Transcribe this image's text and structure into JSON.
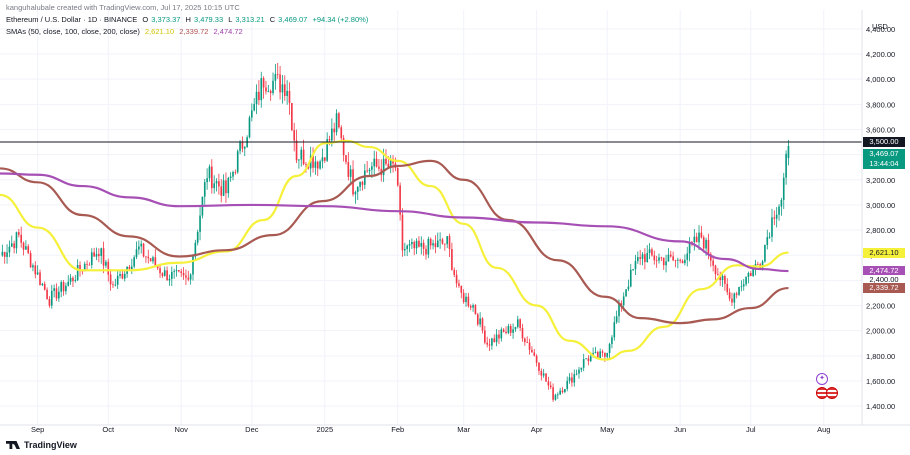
{
  "header": {
    "attribution": "kanguhalubale created with TradingView.com, Jul 17, 2025 10:15 UTC",
    "symbol": "Ethereum / U.S. Dollar · 1D · BINANCE",
    "o_label": "O",
    "o_value": "3,373.37",
    "h_label": "H",
    "h_value": "3,479.33",
    "l_label": "L",
    "l_value": "3,313.21",
    "c_label": "C",
    "c_value": "3,469.07",
    "change": "+94.34 (+2.80%)",
    "sma_label": "SMAs (50, close, 100, close, 200, close)",
    "sma50_value": "2,621.10",
    "sma100_value": "2,339.72",
    "sma200_value": "2,474.72"
  },
  "axis": {
    "unit": "USD"
  },
  "price_tags": {
    "hline": "3,500.00",
    "last_price": "3,469.07",
    "countdown": "13:44:04",
    "sma50": "2,621.10",
    "sma200": "2,474.72",
    "hidden_tick": "2,400.00",
    "sma100": "2,339.72"
  },
  "footer": {
    "brand": "TradingView"
  },
  "colors": {
    "up": "#089981",
    "down": "#f23645",
    "sma50": "#f5f03a",
    "sma100": "#a85a52",
    "sma200": "#a64fb5",
    "hline": "#131722",
    "grid": "#f0f3fa"
  },
  "chart_data": {
    "type": "candlestick",
    "title": "Ethereum / U.S. Dollar · 1D · BINANCE",
    "ylabel": "USD",
    "ylim": [
      1250,
      4550
    ],
    "y_ticks": [
      1400,
      1600,
      1800,
      2000,
      2200,
      2400,
      2600,
      2800,
      3000,
      3200,
      3400,
      3600,
      3800,
      4000,
      4200,
      4400
    ],
    "y_tick_labels": [
      "1,400.00",
      "1,600.00",
      "1,800.00",
      "2,000.00",
      "2,200.00",
      "2,400.00",
      "2,600.00",
      "2,800.00",
      "3,000.00",
      "3,200.00",
      "3,400.00",
      "3,600.00",
      "3,800.00",
      "4,000.00",
      "4,200.00",
      "4,400.00"
    ],
    "x_ticks": [
      {
        "label": "Sep",
        "date": "2024-09-01"
      },
      {
        "label": "Oct",
        "date": "2024-10-01"
      },
      {
        "label": "Nov",
        "date": "2024-11-01"
      },
      {
        "label": "Dec",
        "date": "2024-12-01"
      },
      {
        "label": "2025",
        "date": "2025-01-01"
      },
      {
        "label": "Feb",
        "date": "2025-02-01"
      },
      {
        "label": "Mar",
        "date": "2025-03-01"
      },
      {
        "label": "Apr",
        "date": "2025-04-01"
      },
      {
        "label": "May",
        "date": "2025-05-01"
      },
      {
        "label": "Jun",
        "date": "2025-06-01"
      },
      {
        "label": "Jul",
        "date": "2025-07-01"
      },
      {
        "label": "Aug",
        "date": "2025-08-01"
      }
    ],
    "x_range": [
      "2024-08-16",
      "2025-08-13"
    ],
    "horizontal_line": 3500,
    "close_anchors": [
      [
        "2024-08-16",
        2600
      ],
      [
        "2024-08-24",
        2750
      ],
      [
        "2024-09-06",
        2250
      ],
      [
        "2024-09-15",
        2400
      ],
      [
        "2024-09-27",
        2650
      ],
      [
        "2024-10-03",
        2350
      ],
      [
        "2024-10-14",
        2650
      ],
      [
        "2024-10-25",
        2450
      ],
      [
        "2024-11-04",
        2400
      ],
      [
        "2024-11-12",
        3250
      ],
      [
        "2024-11-20",
        3100
      ],
      [
        "2024-11-29",
        3600
      ],
      [
        "2024-12-06",
        4000
      ],
      [
        "2024-12-16",
        3950
      ],
      [
        "2024-12-20",
        3400
      ],
      [
        "2024-12-30",
        3350
      ],
      [
        "2025-01-06",
        3650
      ],
      [
        "2025-01-13",
        3150
      ],
      [
        "2025-01-20",
        3300
      ],
      [
        "2025-01-31",
        3300
      ],
      [
        "2025-02-03",
        2650
      ],
      [
        "2025-02-10",
        2650
      ],
      [
        "2025-02-22",
        2700
      ],
      [
        "2025-02-27",
        2300
      ],
      [
        "2025-03-05",
        2200
      ],
      [
        "2025-03-11",
        1900
      ],
      [
        "2025-03-24",
        2050
      ],
      [
        "2025-03-31",
        1800
      ],
      [
        "2025-04-08",
        1480
      ],
      [
        "2025-04-15",
        1600
      ],
      [
        "2025-04-22",
        1780
      ],
      [
        "2025-04-30",
        1800
      ],
      [
        "2025-05-09",
        2350
      ],
      [
        "2025-05-15",
        2600
      ],
      [
        "2025-05-31",
        2550
      ],
      [
        "2025-06-10",
        2750
      ],
      [
        "2025-06-15",
        2550
      ],
      [
        "2025-06-22",
        2250
      ],
      [
        "2025-06-30",
        2450
      ],
      [
        "2025-07-05",
        2550
      ],
      [
        "2025-07-11",
        2950
      ],
      [
        "2025-07-14",
        3050
      ],
      [
        "2025-07-17",
        3469
      ]
    ],
    "series": [
      {
        "name": "SMA 50",
        "color": "#f5f03a",
        "points": [
          [
            "2024-08-16",
            3080
          ],
          [
            "2024-09-01",
            2820
          ],
          [
            "2024-09-20",
            2480
          ],
          [
            "2024-10-10",
            2480
          ],
          [
            "2024-10-31",
            2540
          ],
          [
            "2024-11-20",
            2630
          ],
          [
            "2024-12-06",
            2880
          ],
          [
            "2024-12-20",
            3230
          ],
          [
            "2025-01-01",
            3490
          ],
          [
            "2025-01-10",
            3510
          ],
          [
            "2025-01-20",
            3460
          ],
          [
            "2025-02-01",
            3350
          ],
          [
            "2025-02-15",
            3150
          ],
          [
            "2025-03-01",
            2850
          ],
          [
            "2025-03-15",
            2500
          ],
          [
            "2025-04-01",
            2200
          ],
          [
            "2025-04-15",
            1920
          ],
          [
            "2025-04-30",
            1770
          ],
          [
            "2025-05-10",
            1840
          ],
          [
            "2025-05-25",
            2030
          ],
          [
            "2025-06-10",
            2330
          ],
          [
            "2025-06-25",
            2520
          ],
          [
            "2025-07-05",
            2510
          ],
          [
            "2025-07-17",
            2621
          ]
        ]
      },
      {
        "name": "SMA 100",
        "color": "#a85a52",
        "points": [
          [
            "2024-08-16",
            3290
          ],
          [
            "2024-09-01",
            3180
          ],
          [
            "2024-09-20",
            2920
          ],
          [
            "2024-10-10",
            2750
          ],
          [
            "2024-10-31",
            2590
          ],
          [
            "2024-11-20",
            2640
          ],
          [
            "2024-12-10",
            2760
          ],
          [
            "2024-12-31",
            3030
          ],
          [
            "2025-01-20",
            3230
          ],
          [
            "2025-02-01",
            3310
          ],
          [
            "2025-02-15",
            3350
          ],
          [
            "2025-03-01",
            3200
          ],
          [
            "2025-03-20",
            2880
          ],
          [
            "2025-04-10",
            2560
          ],
          [
            "2025-04-30",
            2270
          ],
          [
            "2025-05-15",
            2100
          ],
          [
            "2025-06-01",
            2060
          ],
          [
            "2025-06-15",
            2090
          ],
          [
            "2025-07-01",
            2180
          ],
          [
            "2025-07-17",
            2339
          ]
        ]
      },
      {
        "name": "SMA 200",
        "color": "#a64fb5",
        "points": [
          [
            "2024-08-16",
            3250
          ],
          [
            "2024-09-01",
            3240
          ],
          [
            "2024-09-20",
            3150
          ],
          [
            "2024-10-10",
            3060
          ],
          [
            "2024-10-31",
            2990
          ],
          [
            "2024-12-01",
            3000
          ],
          [
            "2025-01-01",
            2990
          ],
          [
            "2025-02-01",
            2950
          ],
          [
            "2025-03-01",
            2900
          ],
          [
            "2025-04-01",
            2860
          ],
          [
            "2025-05-01",
            2830
          ],
          [
            "2025-06-01",
            2710
          ],
          [
            "2025-06-20",
            2570
          ],
          [
            "2025-07-05",
            2490
          ],
          [
            "2025-07-17",
            2474
          ]
        ]
      }
    ]
  }
}
